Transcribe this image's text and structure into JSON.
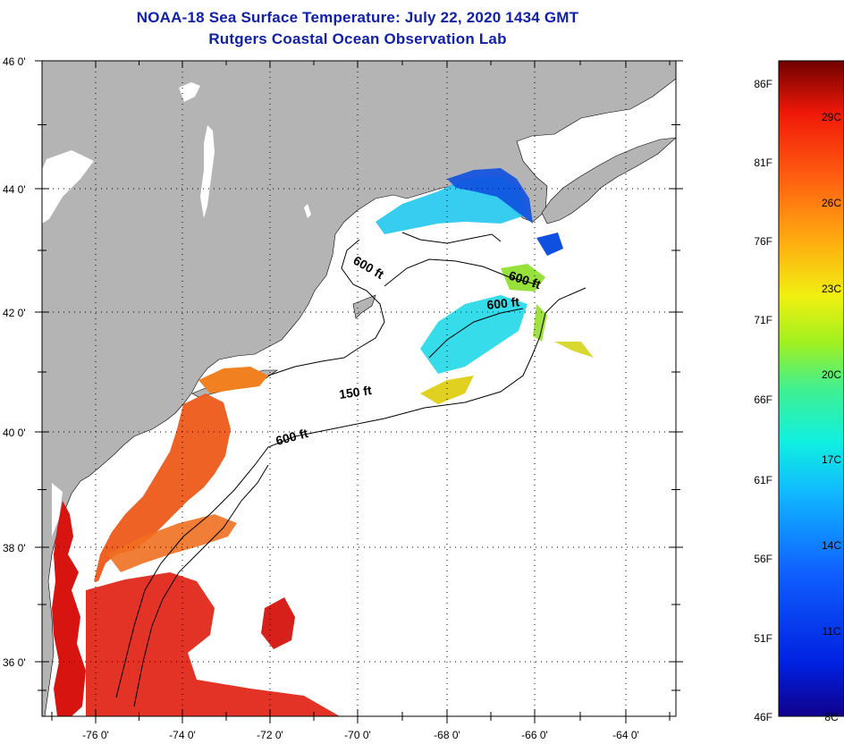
{
  "header": {
    "title": "NOAA-18 Sea Surface Temperature:  July 22, 2020 1434 GMT",
    "subtitle": "Rutgers Coastal Ocean Observation Lab"
  },
  "axes": {
    "lat_labels": [
      "46 0'",
      "44 0'",
      "42 0'",
      "40 0'",
      "38 0'",
      "36 0'"
    ],
    "lon_labels": [
      "-76 0'",
      "-74 0'",
      "-72 0'",
      "-70 0'",
      "-68 0'",
      "-66 0'",
      "-64 0'"
    ]
  },
  "contours": {
    "labels": [
      "600 ft",
      "600 ft",
      "600 ft",
      "150 ft",
      "600 ft"
    ]
  },
  "colorbar": {
    "fahrenheit": [
      "86F",
      "81F",
      "76F",
      "71F",
      "66F",
      "61F",
      "56F",
      "51F",
      "46F"
    ],
    "celsius": [
      "29C",
      "26C",
      "23C",
      "20C",
      "17C",
      "14C",
      "11C",
      "8C"
    ]
  },
  "colors": {
    "land": "#b4b4b4",
    "water": "#ffffff",
    "title": "#1020a8"
  }
}
